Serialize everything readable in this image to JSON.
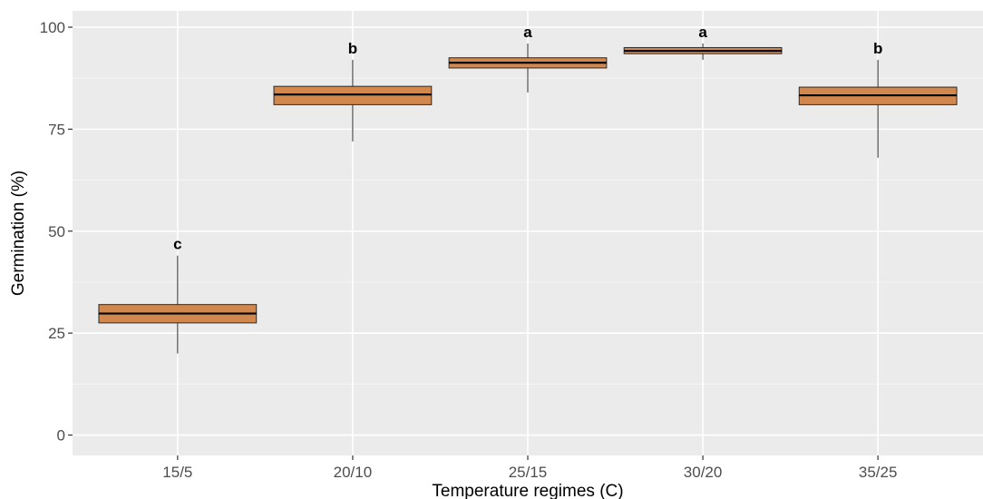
{
  "chart_data": {
    "type": "boxplot",
    "xlabel": "Temperature regimes (C)",
    "ylabel": "Germination (%)",
    "ylim": [
      -5,
      104
    ],
    "y_ticks": [
      0,
      25,
      50,
      75,
      100
    ],
    "categories": [
      "15/5",
      "20/10",
      "25/15",
      "30/20",
      "35/25"
    ],
    "boxes": [
      {
        "category": "15/5",
        "whisker_low": 20,
        "q1": 27.5,
        "median": 29.8,
        "q3": 32,
        "whisker_high": 44,
        "group_label": "c"
      },
      {
        "category": "20/10",
        "whisker_low": 72,
        "q1": 81,
        "median": 83.5,
        "q3": 85.5,
        "whisker_high": 92,
        "group_label": "b"
      },
      {
        "category": "25/15",
        "whisker_low": 84,
        "q1": 90,
        "median": 91.3,
        "q3": 92.5,
        "whisker_high": 96,
        "group_label": "a"
      },
      {
        "category": "30/20",
        "whisker_low": 92,
        "q1": 93.5,
        "median": 94.2,
        "q3": 95,
        "whisker_high": 96,
        "group_label": "a"
      },
      {
        "category": "35/25",
        "whisker_low": 68,
        "q1": 81,
        "median": 83.3,
        "q3": 85.3,
        "whisker_high": 92,
        "group_label": "b"
      }
    ],
    "grid": true,
    "legend": "none",
    "colors": {
      "panel_background": "#ebebeb",
      "grid_major": "#ffffff",
      "grid_minor": "#f5f5f5",
      "box_fill": "#d2874c",
      "box_stroke": "#2b2b2b",
      "whisker": "#2b2b2b",
      "median": "#000000"
    }
  }
}
